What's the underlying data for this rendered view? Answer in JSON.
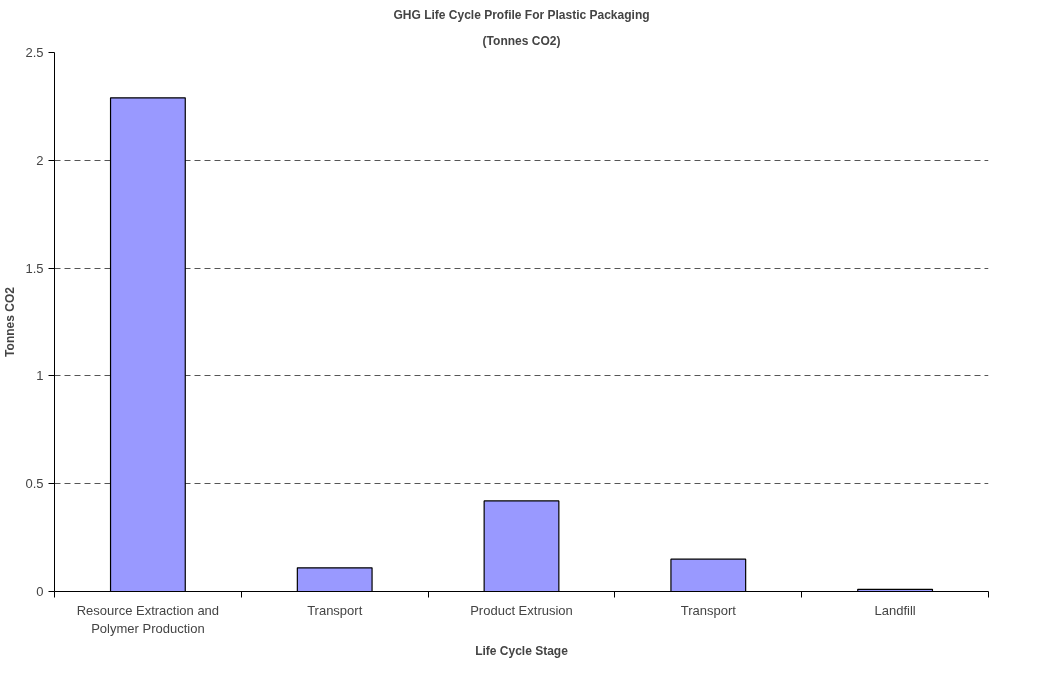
{
  "chart_data": {
    "type": "bar",
    "title": "GHG Life Cycle Profile For Plastic Packaging",
    "subtitle": "(Tonnes CO2)",
    "xlabel": "Life Cycle Stage",
    "ylabel": "Tonnes CO2",
    "categories": [
      "Resource Extraction and Polymer Production",
      "Transport",
      "Product Extrusion",
      "Transport",
      "Landfill"
    ],
    "values": [
      2.29,
      0.11,
      0.42,
      0.15,
      0.01
    ],
    "color": "#9999ff",
    "ylim": [
      0,
      2.5
    ],
    "yticks": [
      0,
      0.5,
      1,
      1.5,
      2,
      2.5
    ],
    "grid": "y"
  }
}
